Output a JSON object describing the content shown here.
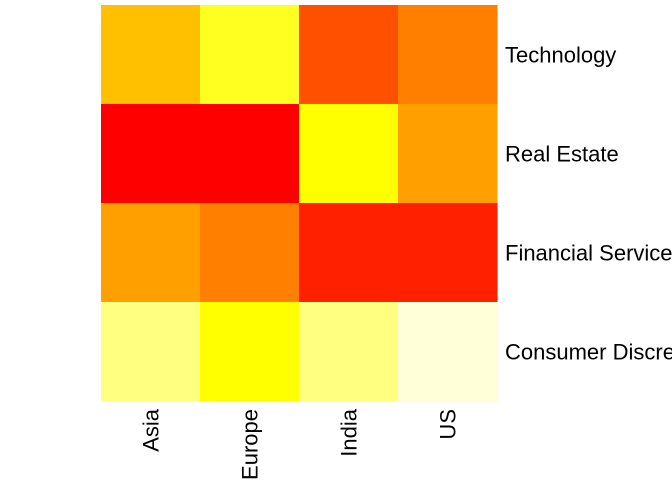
{
  "chart_data": {
    "type": "heatmap",
    "title": "",
    "xlabel": "",
    "ylabel": "",
    "x_categories": [
      "Asia",
      "Europe",
      "India",
      "US"
    ],
    "y_categories": [
      "Technology",
      "Real Estate",
      "Financial Services",
      "Consumer Discretionary"
    ],
    "scale": "relative intensity 0 (light) to 1 (red)",
    "colormap": [
      "#ffffcc",
      "#ffff80",
      "#ffff00",
      "#ffbf00",
      "#ff8000",
      "#ff4000",
      "#ff0000"
    ],
    "values": [
      [
        0.5,
        0.27,
        0.85,
        0.7
      ],
      [
        1.0,
        1.0,
        0.32,
        0.6
      ],
      [
        0.6,
        0.7,
        0.93,
        0.93
      ],
      [
        0.18,
        0.33,
        0.2,
        0.02
      ]
    ],
    "colors": [
      [
        "#ffc000",
        "#ffff20",
        "#ff5000",
        "#ff7f00"
      ],
      [
        "#ff0000",
        "#ff0000",
        "#ffff00",
        "#ffa000"
      ],
      [
        "#ffa000",
        "#ff7f00",
        "#ff2000",
        "#ff2000"
      ],
      [
        "#ffff80",
        "#ffff00",
        "#ffff80",
        "#ffffd8"
      ]
    ],
    "legend": "none",
    "grid": false
  }
}
